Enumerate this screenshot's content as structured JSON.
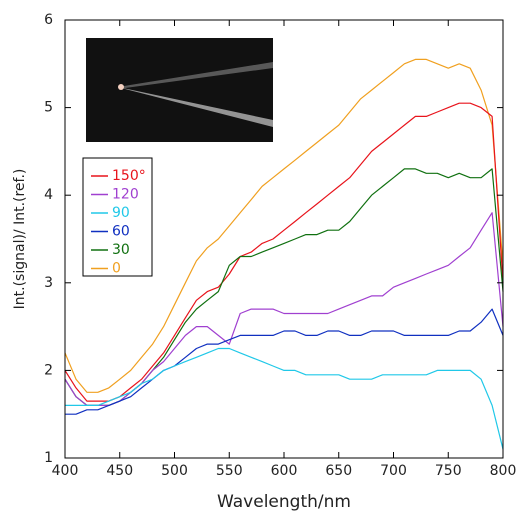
{
  "chart_data": {
    "type": "line",
    "xlabel": "Wavelength/nm",
    "ylabel": "Int.(signal)/ Int.(ref.)",
    "x": [
      400,
      410,
      420,
      430,
      440,
      450,
      460,
      470,
      480,
      490,
      500,
      510,
      520,
      530,
      540,
      550,
      560,
      570,
      580,
      590,
      600,
      610,
      620,
      630,
      640,
      650,
      660,
      670,
      680,
      690,
      700,
      710,
      720,
      730,
      740,
      750,
      760,
      770,
      780,
      790,
      800
    ],
    "series": [
      {
        "name": "150°",
        "color": "#e8141c",
        "values": [
          2.0,
          1.8,
          1.65,
          1.65,
          1.65,
          1.7,
          1.8,
          1.9,
          2.05,
          2.2,
          2.4,
          2.6,
          2.8,
          2.9,
          2.95,
          3.1,
          3.3,
          3.35,
          3.45,
          3.5,
          3.6,
          3.7,
          3.8,
          3.9,
          4.0,
          4.1,
          4.2,
          4.35,
          4.5,
          4.6,
          4.7,
          4.8,
          4.9,
          4.9,
          4.95,
          5.0,
          5.05,
          5.05,
          5.0,
          4.9,
          3.0
        ]
      },
      {
        "name": "120",
        "color": "#a040d0",
        "values": [
          1.9,
          1.7,
          1.6,
          1.6,
          1.6,
          1.65,
          1.75,
          1.85,
          2.0,
          2.1,
          2.25,
          2.4,
          2.5,
          2.5,
          2.4,
          2.3,
          2.65,
          2.7,
          2.7,
          2.7,
          2.65,
          2.65,
          2.65,
          2.65,
          2.65,
          2.7,
          2.75,
          2.8,
          2.85,
          2.85,
          2.95,
          3.0,
          3.05,
          3.1,
          3.15,
          3.2,
          3.3,
          3.4,
          3.6,
          3.8,
          2.5
        ]
      },
      {
        "name": "90",
        "color": "#20c8e8",
        "values": [
          1.6,
          1.6,
          1.6,
          1.6,
          1.65,
          1.7,
          1.75,
          1.85,
          1.9,
          2.0,
          2.05,
          2.1,
          2.15,
          2.2,
          2.25,
          2.25,
          2.2,
          2.15,
          2.1,
          2.05,
          2.0,
          2.0,
          1.95,
          1.95,
          1.95,
          1.95,
          1.9,
          1.9,
          1.9,
          1.95,
          1.95,
          1.95,
          1.95,
          1.95,
          2.0,
          2.0,
          2.0,
          2.0,
          1.9,
          1.6,
          1.1
        ]
      },
      {
        "name": "60",
        "color": "#1030c0",
        "values": [
          1.5,
          1.5,
          1.55,
          1.55,
          1.6,
          1.65,
          1.7,
          1.8,
          1.9,
          2.0,
          2.05,
          2.15,
          2.25,
          2.3,
          2.3,
          2.35,
          2.4,
          2.4,
          2.4,
          2.4,
          2.45,
          2.45,
          2.4,
          2.4,
          2.45,
          2.45,
          2.4,
          2.4,
          2.45,
          2.45,
          2.45,
          2.4,
          2.4,
          2.4,
          2.4,
          2.4,
          2.45,
          2.45,
          2.55,
          2.7,
          2.4
        ]
      },
      {
        "name": "30",
        "color": "#107010",
        "values": [
          1.9,
          1.7,
          1.6,
          1.6,
          1.6,
          1.65,
          1.75,
          1.85,
          2.0,
          2.15,
          2.35,
          2.55,
          2.7,
          2.8,
          2.9,
          3.2,
          3.3,
          3.3,
          3.35,
          3.4,
          3.45,
          3.5,
          3.55,
          3.55,
          3.6,
          3.6,
          3.7,
          3.85,
          4.0,
          4.1,
          4.2,
          4.3,
          4.3,
          4.25,
          4.25,
          4.2,
          4.25,
          4.2,
          4.2,
          4.3,
          2.9
        ]
      },
      {
        "name": "0",
        "color": "#f0a020",
        "values": [
          2.2,
          1.9,
          1.75,
          1.75,
          1.8,
          1.9,
          2.0,
          2.15,
          2.3,
          2.5,
          2.75,
          3.0,
          3.25,
          3.4,
          3.5,
          3.65,
          3.8,
          3.95,
          4.1,
          4.2,
          4.3,
          4.4,
          4.5,
          4.6,
          4.7,
          4.8,
          4.95,
          5.1,
          5.2,
          5.3,
          5.4,
          5.5,
          5.55,
          5.55,
          5.5,
          5.45,
          5.5,
          5.45,
          5.2,
          4.8,
          3.2
        ]
      }
    ],
    "xlim": [
      400,
      800
    ],
    "ylim": [
      1,
      6
    ],
    "xticks": [
      400,
      450,
      500,
      550,
      600,
      650,
      700,
      750,
      800
    ],
    "yticks": [
      1,
      2,
      3,
      4,
      5,
      6
    ],
    "grid": false
  }
}
